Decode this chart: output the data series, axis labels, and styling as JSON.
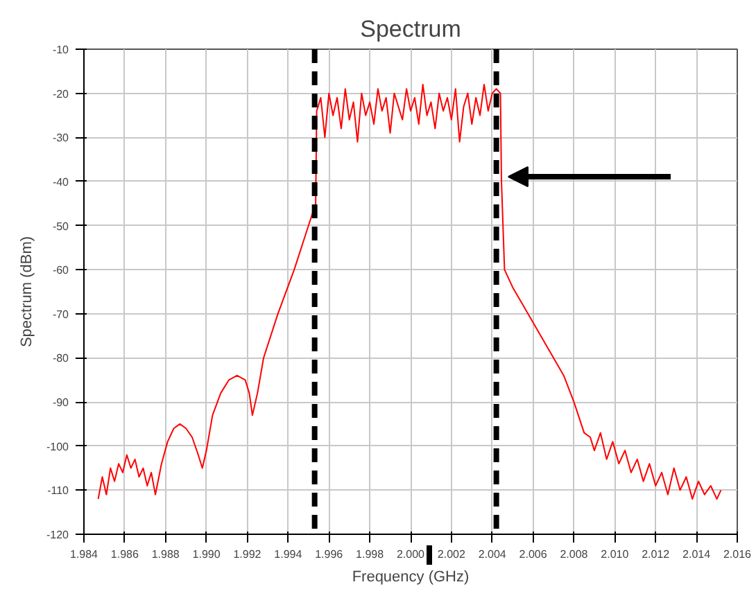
{
  "chart_data": {
    "type": "line",
    "title": "Spectrum",
    "xlabel": "Frequency (GHz)",
    "ylabel": "Spectrum (dBm)",
    "xlim": [
      1.984,
      2.016
    ],
    "ylim": [
      -120,
      -10
    ],
    "xticks": [
      {
        "value": 1.984,
        "label": "1.984"
      },
      {
        "value": 1.986,
        "label": "1.986"
      },
      {
        "value": 1.988,
        "label": "1.988"
      },
      {
        "value": 1.99,
        "label": "1.990"
      },
      {
        "value": 1.992,
        "label": "1.992"
      },
      {
        "value": 1.994,
        "label": "1.994"
      },
      {
        "value": 1.996,
        "label": "1.996"
      },
      {
        "value": 1.998,
        "label": "1.998"
      },
      {
        "value": 2.0,
        "label": "2.000"
      },
      {
        "value": 2.002,
        "label": "2.002"
      },
      {
        "value": 2.004,
        "label": "2.004"
      },
      {
        "value": 2.006,
        "label": "2.006"
      },
      {
        "value": 2.008,
        "label": "2.008"
      },
      {
        "value": 2.01,
        "label": "2.010"
      },
      {
        "value": 2.012,
        "label": "2.012"
      },
      {
        "value": 2.014,
        "label": "2.014"
      },
      {
        "value": 2.016,
        "label": "2.016"
      }
    ],
    "yticks": [
      -120,
      -110,
      -100,
      -90,
      -80,
      -70,
      -60,
      -50,
      -40,
      -30,
      -20,
      -10
    ],
    "grid": true,
    "line_style": "solid",
    "ref_lines": [
      {
        "axis": "x",
        "value": 1.9953,
        "label": null,
        "color": "#000000",
        "line_style": "dashed"
      },
      {
        "axis": "x",
        "value": 2.0042,
        "label": null,
        "color": "#000000",
        "line_style": "dashed"
      }
    ],
    "series": [
      {
        "color": "#ff0000",
        "x": [
          1.9847,
          1.9849,
          1.9851,
          1.9853,
          1.9855,
          1.9857,
          1.9859,
          1.9861,
          1.9863,
          1.9865,
          1.9867,
          1.9869,
          1.9871,
          1.9873,
          1.9875,
          1.9878,
          1.9881,
          1.9884,
          1.9887,
          1.989,
          1.9893,
          1.9896,
          1.9898,
          1.99,
          1.9903,
          1.9907,
          1.9911,
          1.9915,
          1.9919,
          1.9921,
          1.99225,
          1.9925,
          1.9928,
          1.9935,
          1.9943,
          1.995,
          1.99535,
          1.9954,
          1.9956,
          1.9958,
          1.996,
          1.9962,
          1.9964,
          1.9966,
          1.9968,
          1.997,
          1.9972,
          1.9974,
          1.9976,
          1.9978,
          1.998,
          1.9982,
          1.9984,
          1.9986,
          1.9988,
          1.999,
          1.9992,
          1.9994,
          1.9996,
          1.9998,
          2.0,
          2.0002,
          2.0004,
          2.0006,
          2.0008,
          2.001,
          2.0012,
          2.0014,
          2.0016,
          2.0018,
          2.002,
          2.0022,
          2.0024,
          2.0026,
          2.0028,
          2.003,
          2.0032,
          2.0034,
          2.0036,
          2.0038,
          2.004,
          2.0042,
          2.0044,
          2.00445,
          2.0046,
          2.005,
          2.0055,
          2.006,
          2.0065,
          2.007,
          2.0075,
          2.008,
          2.0085,
          2.0088,
          2.009,
          2.0093,
          2.0096,
          2.0099,
          2.0102,
          2.0105,
          2.0108,
          2.0111,
          2.0114,
          2.0117,
          2.012,
          2.0123,
          2.0126,
          2.0129,
          2.0132,
          2.0135,
          2.0138,
          2.0141,
          2.0144,
          2.0147,
          2.015,
          2.0152
        ],
        "values": [
          -112,
          -107,
          -111,
          -105,
          -108,
          -104,
          -106,
          -102,
          -105,
          -103,
          -107,
          -105,
          -109,
          -106,
          -111,
          -104,
          -99,
          -96,
          -95,
          -96,
          -98,
          -102,
          -105,
          -101,
          -93,
          -88,
          -85,
          -84,
          -85,
          -88,
          -93,
          -88,
          -80,
          -70,
          -60,
          -50,
          -45,
          -24,
          -21,
          -30,
          -20,
          -25,
          -21,
          -28,
          -19,
          -26,
          -22,
          -31,
          -20,
          -25,
          -22,
          -27,
          -19,
          -24,
          -21,
          -29,
          -20,
          -23,
          -26,
          -19,
          -24,
          -21,
          -27,
          -18,
          -25,
          -22,
          -28,
          -20,
          -24,
          -21,
          -26,
          -19,
          -31,
          -23,
          -20,
          -27,
          -21,
          -25,
          -18,
          -24,
          -20,
          -19,
          -20,
          -40,
          -60,
          -64,
          -68,
          -72,
          -76,
          -80,
          -84,
          -90,
          -97,
          -98,
          -101,
          -97,
          -103,
          -99,
          -104,
          -101,
          -106,
          -103,
          -108,
          -104,
          -109,
          -106,
          -111,
          -105,
          -110,
          -107,
          -112,
          -108,
          -111,
          -109,
          -112,
          -110
        ]
      }
    ]
  }
}
